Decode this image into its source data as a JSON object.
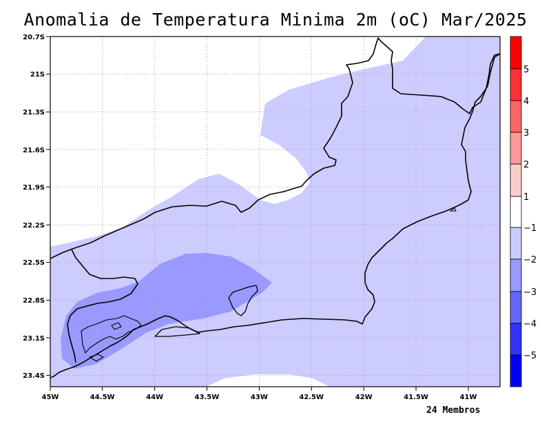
{
  "title": "Anomalia de Temperatura Minima 2m (oC) Mar/2025",
  "footnote": "24 Membros",
  "map": {
    "lat_ticks": [
      "20.7S",
      "21S",
      "21.3S",
      "21.6S",
      "21.9S",
      "22.2S",
      "22.5S",
      "22.8S",
      "23.1S",
      "23.4S"
    ],
    "lon_ticks": [
      "45W",
      "44.5W",
      "44W",
      "43.5W",
      "43W",
      "42.5W",
      "42W",
      "41.5W",
      "41W"
    ],
    "lat_range": [
      -23.5,
      -20.7
    ],
    "lon_range": [
      -45.0,
      -40.7
    ],
    "grid": true,
    "coastline_color": "#000000"
  },
  "colorbar": {
    "placement": "right",
    "labels": [
      "5",
      "4",
      "3",
      "2",
      "1",
      "−1",
      "−2",
      "−3",
      "−4",
      "−5"
    ],
    "colors": [
      "#ff0000",
      "#ff3333",
      "#ff6666",
      "#ff9999",
      "#ffcccc",
      "#ffffff",
      "#ccccff",
      "#9999ff",
      "#6666ff",
      "#3333ff",
      "#0000ff"
    ]
  },
  "anomaly_classes": {
    "light": {
      "range": "-2 to -1",
      "color": "#ccccff"
    },
    "medium": {
      "range": "-3 to -2",
      "color": "#9999ff"
    }
  }
}
